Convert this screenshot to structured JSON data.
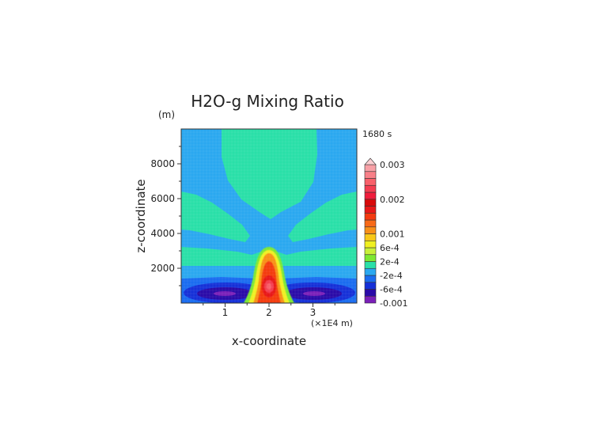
{
  "chart_data": {
    "type": "heatmap",
    "title": "H2O-g Mixing Ratio",
    "time_label": "1680 s",
    "xlabel": "x-coordinate",
    "ylabel": "z-coordinate",
    "x_unit_label": "(×1E4 m)",
    "y_unit_label": "(m)",
    "xlim": [
      0,
      4
    ],
    "ylim": [
      0,
      10000
    ],
    "x_ticks": [
      1,
      2,
      3
    ],
    "x_tick_labels": [
      "1",
      "2",
      "3"
    ],
    "y_ticks": [
      2000,
      4000,
      6000,
      8000
    ],
    "y_tick_labels": [
      "2000",
      "4000",
      "6000",
      "8000"
    ],
    "colorbar": {
      "levels": [
        -0.001,
        -0.0008,
        -0.0006,
        -0.0004,
        -0.0002,
        0,
        0.0002,
        0.0004,
        0.0006,
        0.0008,
        0.001,
        0.0012,
        0.0014,
        0.0016,
        0.0018,
        0.002,
        0.0022,
        0.0024,
        0.0026,
        0.0028,
        0.003
      ],
      "colors": [
        "#7a1fb8",
        "#2a0aa8",
        "#1530d8",
        "#1a6cf0",
        "#2aa8f0",
        "#29e0a8",
        "#7de832",
        "#c8f03a",
        "#f0f020",
        "#f8c818",
        "#f89018",
        "#f86a18",
        "#f43a10",
        "#e81818",
        "#d80a0a",
        "#f01c3c",
        "#f43c50",
        "#f8606a",
        "#f88088",
        "#f8a0a6"
      ],
      "extend_top_color": "#fbd0d3",
      "tick_labels": [
        "0.003",
        "0.002",
        "0.001",
        "6e-4",
        "2e-4",
        "-2e-4",
        "-6e-4",
        "-0.001"
      ]
    },
    "field_description_levels": {
      "background": -0.0002,
      "upper_plume": 0.0002,
      "side_lobes_middle": 0.0002,
      "lower_band": 0.0002,
      "near_surface": -0.0002,
      "dry_eddies": -0.0008,
      "dry_eddy_cores": -0.001,
      "central_updraft_peak": 0.0022
    }
  }
}
